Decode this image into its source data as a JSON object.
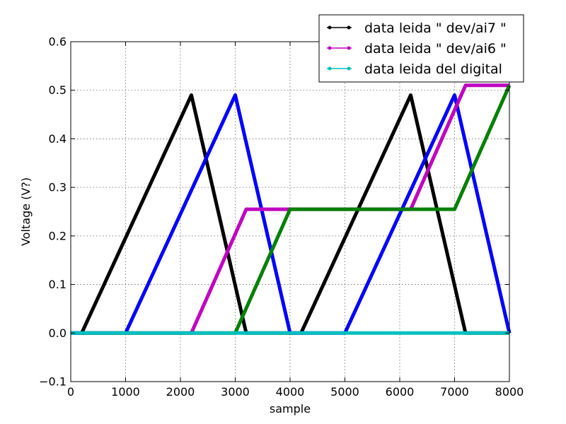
{
  "chart_data": {
    "type": "line",
    "xlabel": "sample",
    "ylabel": "Voltage (V?)",
    "xlim": [
      0,
      8000
    ],
    "ylim": [
      -0.1,
      0.6
    ],
    "xticks": [
      0,
      1000,
      2000,
      3000,
      4000,
      5000,
      6000,
      7000,
      8000
    ],
    "yticks": [
      -0.1,
      0.0,
      0.1,
      0.2,
      0.3,
      0.4,
      0.5,
      0.6
    ],
    "ytick_labels": [
      "−0.1",
      "0.0",
      "0.1",
      "0.2",
      "0.3",
      "0.4",
      "0.5",
      "0.6"
    ],
    "grid": true,
    "legend_position": "top-right",
    "legend": [
      {
        "label": "data leida \" dev/ai7 \"",
        "color": "#000000"
      },
      {
        "label": "data leida \" dev/ai6 \"",
        "color": "#bf00bf"
      },
      {
        "label": "data leida del digital",
        "color": "#00bfbf"
      }
    ],
    "series": [
      {
        "color": "#000000",
        "x": [
          0,
          200,
          2200,
          3200,
          4200,
          6200,
          7200,
          8000
        ],
        "y": [
          0,
          0,
          0.49,
          0,
          0,
          0.49,
          0,
          0
        ]
      },
      {
        "color": "#0000ff",
        "x": [
          0,
          1000,
          3000,
          4000,
          5000,
          7000,
          8000
        ],
        "y": [
          0,
          0,
          0.49,
          0,
          0,
          0.49,
          0
        ]
      },
      {
        "color": "#bf00bf",
        "x": [
          0,
          2200,
          3200,
          6200,
          7200,
          8000
        ],
        "y": [
          0,
          0,
          0.255,
          0.255,
          0.51,
          0.51
        ]
      },
      {
        "color": "#008000",
        "x": [
          0,
          3000,
          4000,
          7000,
          8000
        ],
        "y": [
          0,
          0,
          0.255,
          0.255,
          0.51
        ]
      },
      {
        "color": "#00bfbf",
        "x": [
          0,
          8000
        ],
        "y": [
          0,
          0
        ]
      }
    ]
  }
}
